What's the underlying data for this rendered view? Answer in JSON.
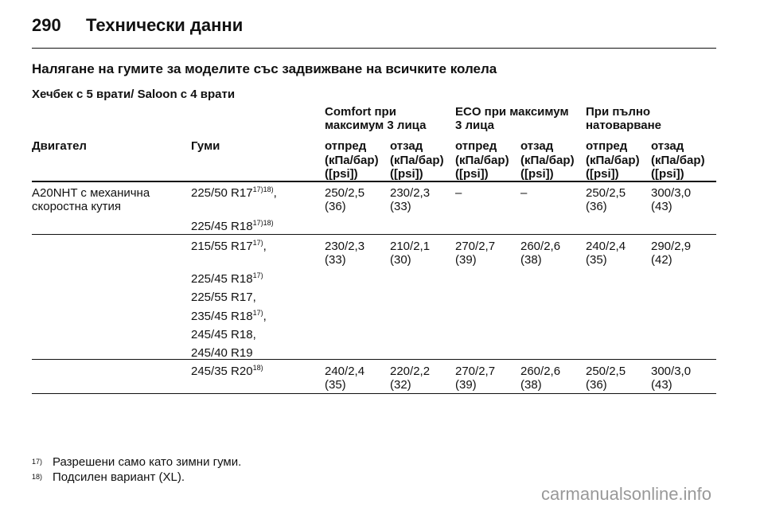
{
  "header": {
    "page_number": "290",
    "title": "Технически данни"
  },
  "section_title": "Налягане на гумите за моделите със задвижване на всичките колела",
  "subtitle": "Хечбек с 5 врати/ Saloon с 4 врати",
  "table": {
    "groups": [
      [
        "Comfort при",
        "максимум 3 лица"
      ],
      [
        "ECO при максимум",
        "3 лица"
      ],
      [
        "При пълно",
        "натоварване"
      ]
    ],
    "columns": [
      "Двигател",
      "Гуми",
      "отпред",
      "отзад",
      "отпред",
      "отзад",
      "отпред",
      "отзад"
    ],
    "units": [
      [
        "(кПа/бар)",
        "([psi])"
      ],
      [
        "(кПа/бар)",
        "([psi])"
      ],
      [
        "(кПа/бар)",
        "([psi])"
      ],
      [
        "(кПа/бар)",
        "([psi])"
      ],
      [
        "(кПа/бар)",
        "([psi])"
      ],
      [
        "(кПа/бар)",
        "([psi])"
      ]
    ],
    "engine": [
      "A20NHT с механична",
      "скоростна кутия"
    ],
    "rows": [
      {
        "tires": [
          {
            "text": "225/50 R17",
            "note": "17)18)",
            "tail": ","
          },
          {
            "text": "225/45 R18",
            "note": "17)18)"
          }
        ],
        "values": [
          [
            "250/2,5",
            "(36)"
          ],
          [
            "230/2,3",
            "(33)"
          ],
          [
            "–"
          ],
          [
            "–"
          ],
          [
            "250/2,5",
            "(36)"
          ],
          [
            "300/3,0",
            "(43)"
          ]
        ]
      },
      {
        "tires": [
          {
            "text": "215/55 R17",
            "note": "17)",
            "tail": ","
          },
          {
            "text": "225/45 R18",
            "note": "17)"
          },
          {
            "text": "225/55 R17,"
          },
          {
            "text": "235/45 R18",
            "note": "17)",
            "tail": ","
          },
          {
            "text": "245/45 R18,"
          },
          {
            "text": "245/40 R19"
          }
        ],
        "values": [
          [
            "230/2,3",
            "(33)"
          ],
          [
            "210/2,1",
            "(30)"
          ],
          [
            "270/2,7",
            "(39)"
          ],
          [
            "260/2,6",
            "(38)"
          ],
          [
            "240/2,4",
            "(35)"
          ],
          [
            "290/2,9",
            "(42)"
          ]
        ]
      },
      {
        "tires": [
          {
            "text": "245/35 R20",
            "note": "18)"
          }
        ],
        "values": [
          [
            "240/2,4",
            "(35)"
          ],
          [
            "220/2,2",
            "(32)"
          ],
          [
            "270/2,7",
            "(39)"
          ],
          [
            "260/2,6",
            "(38)"
          ],
          [
            "250/2,5",
            "(36)"
          ],
          [
            "300/3,0",
            "(43)"
          ]
        ]
      }
    ]
  },
  "footnotes": [
    {
      "mark": "17)",
      "text": "Разрешени само като зимни гуми."
    },
    {
      "mark": "18)",
      "text": "Подсилен вариант (XL)."
    }
  ],
  "watermark": "carmanualsonline.info"
}
